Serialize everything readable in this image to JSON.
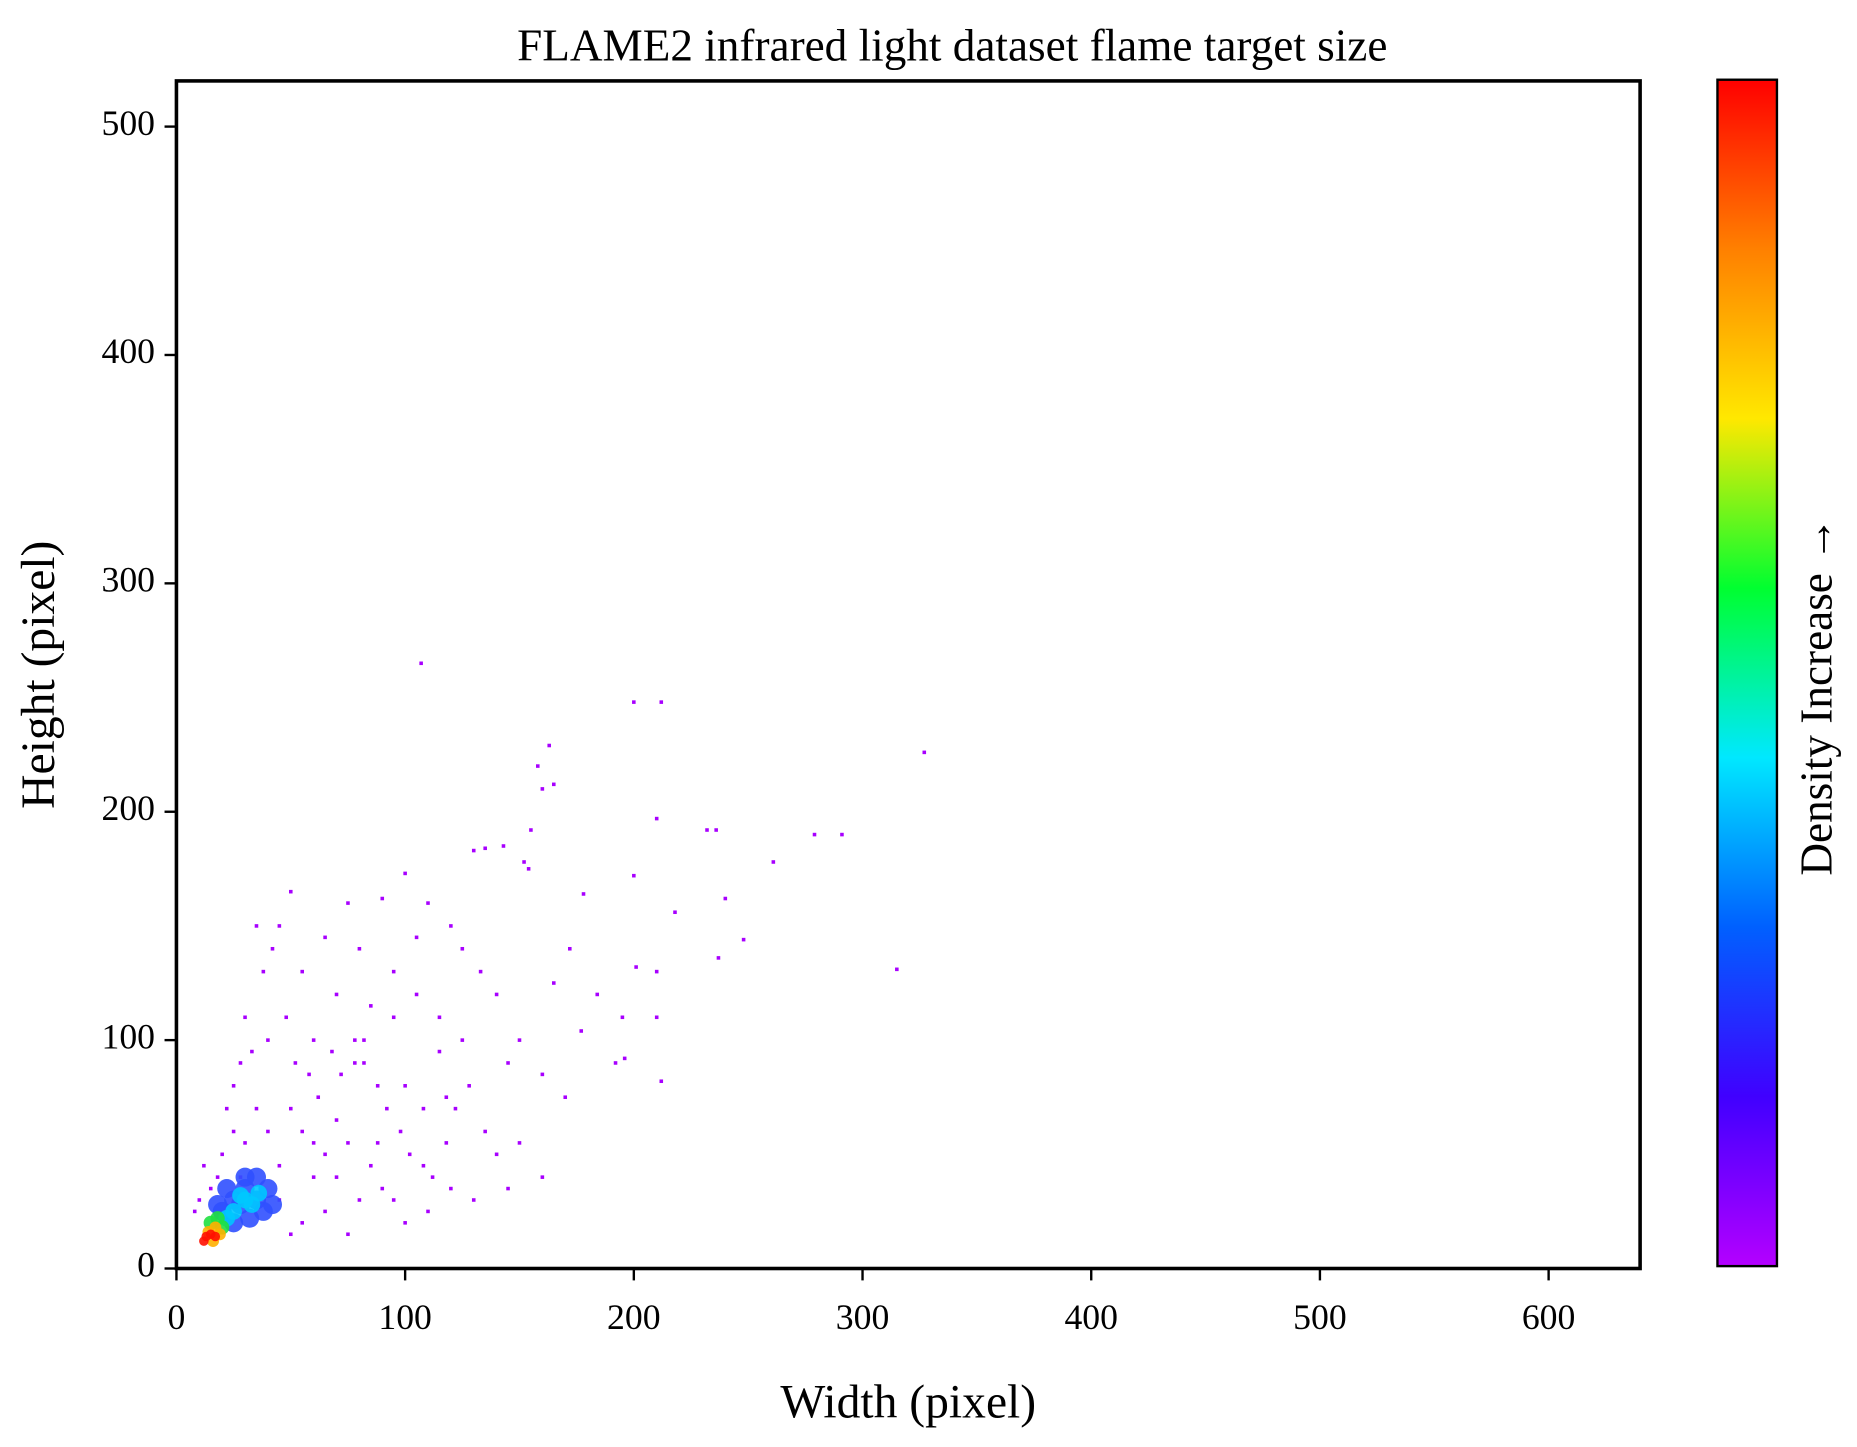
{
  "chart_data": {
    "type": "scatter",
    "title": "FLAME2 infrared light dataset flame target size",
    "x_label": "Width (pixel)",
    "y_label": "Height (pixel)",
    "colorbar_label": "Density Increase →",
    "colorbar_colors": [
      "#b400ff",
      "#4000ff",
      "#0060ff",
      "#00e8ff",
      "#00ff30",
      "#ffe800",
      "#ff8000",
      "#ff0000"
    ],
    "xlim": [
      0,
      640
    ],
    "ylim": [
      0,
      520
    ],
    "xticks": [
      0,
      100,
      200,
      300,
      400,
      500,
      600
    ],
    "yticks": [
      0,
      100,
      200,
      300,
      400,
      500
    ],
    "grid": false,
    "series": [
      {
        "color": "#a800ff",
        "x": [
          107,
          200,
          212,
          327,
          163,
          158,
          160,
          165,
          155,
          210,
          232,
          236,
          279,
          291,
          261,
          152,
          154,
          143,
          130,
          135,
          200,
          240,
          218,
          178,
          248,
          315,
          237,
          201,
          210,
          172,
          165,
          184,
          195,
          210,
          177,
          192,
          196,
          212,
          170,
          160,
          150,
          145,
          140,
          133,
          125,
          120,
          115,
          110,
          105,
          100,
          95,
          90,
          85,
          80,
          75,
          70,
          65,
          60,
          55,
          50,
          45,
          42,
          35,
          38,
          30,
          33,
          28,
          25,
          40,
          48,
          52,
          58,
          62,
          68,
          72,
          78,
          82,
          88,
          92,
          98,
          102,
          108,
          112,
          118,
          122,
          128,
          135,
          140,
          145,
          150,
          160,
          130,
          120,
          110,
          100,
          90,
          85,
          80,
          75,
          70,
          65,
          60,
          55,
          50,
          45,
          40,
          35,
          30,
          25,
          20,
          18,
          15,
          12,
          10,
          8,
          22,
          28,
          55,
          65,
          75,
          50,
          95,
          105,
          115,
          125,
          82,
          78,
          95,
          70,
          60,
          45,
          88,
          100,
          108,
          118
        ],
        "y": [
          265,
          248,
          248,
          226,
          229,
          220,
          210,
          212,
          192,
          197,
          192,
          192,
          190,
          190,
          178,
          178,
          175,
          185,
          183,
          184,
          172,
          162,
          156,
          164,
          144,
          131,
          136,
          132,
          130,
          140,
          125,
          120,
          110,
          110,
          104,
          90,
          92,
          82,
          75,
          85,
          100,
          90,
          120,
          130,
          140,
          150,
          110,
          160,
          145,
          173,
          130,
          162,
          115,
          140,
          160,
          120,
          145,
          100,
          130,
          165,
          150,
          140,
          150,
          130,
          110,
          95,
          90,
          80,
          100,
          110,
          90,
          85,
          75,
          95,
          85,
          100,
          90,
          80,
          70,
          60,
          50,
          45,
          40,
          55,
          70,
          80,
          60,
          50,
          35,
          55,
          40,
          30,
          35,
          25,
          20,
          35,
          45,
          30,
          55,
          65,
          50,
          40,
          60,
          70,
          45,
          60,
          70,
          55,
          60,
          50,
          40,
          35,
          45,
          30,
          25,
          70,
          40,
          20,
          25,
          15,
          15,
          110,
          120,
          95,
          100,
          100,
          90,
          30,
          40,
          55,
          30,
          55,
          80,
          70,
          75
        ]
      },
      {
        "color": "#3050ff",
        "x": [
          20,
          25,
          30,
          35,
          40,
          28,
          32,
          38,
          22,
          30,
          25,
          42,
          18,
          35
        ],
        "y": [
          25,
          30,
          35,
          30,
          35,
          28,
          22,
          25,
          35,
          40,
          20,
          28,
          28,
          40
        ]
      },
      {
        "color": "#00c8ff",
        "x": [
          25,
          30,
          28,
          33,
          22,
          36
        ],
        "y": [
          25,
          30,
          32,
          28,
          22,
          33
        ]
      },
      {
        "color": "#20e040",
        "x": [
          15,
          18,
          20
        ],
        "y": [
          20,
          22,
          18
        ]
      },
      {
        "color": "#ffb000",
        "x": [
          14,
          17,
          19,
          16
        ],
        "y": [
          16,
          18,
          15,
          12
        ]
      },
      {
        "color": "#ff1000",
        "x": [
          13,
          15,
          12,
          17
        ],
        "y": [
          14,
          15,
          12,
          14
        ]
      }
    ]
  }
}
